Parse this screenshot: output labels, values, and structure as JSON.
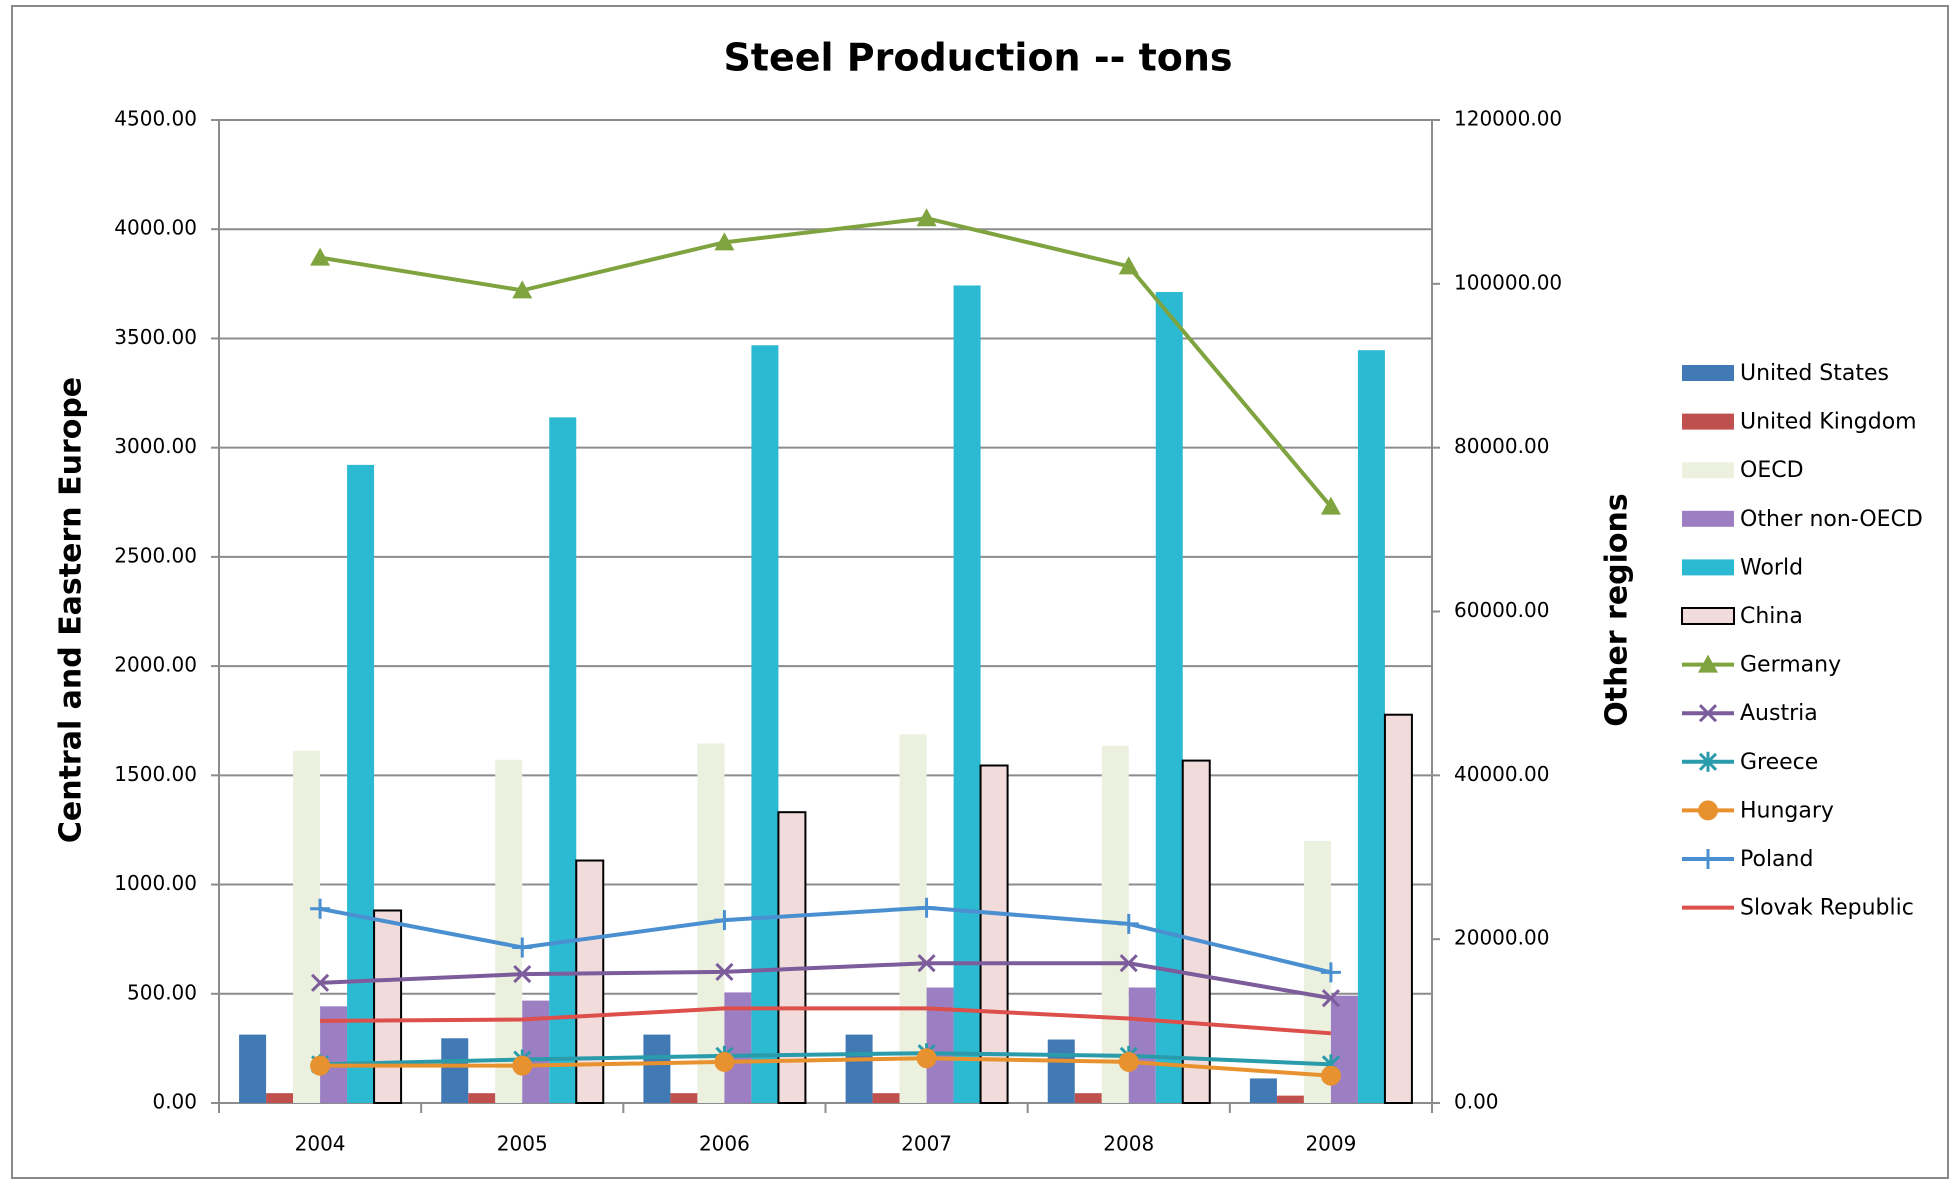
{
  "chart_data": {
    "type": "bar_line",
    "title": "Steel Production -- tons",
    "y_label": "Central and Eastern Europe",
    "y2_label": "Other regions",
    "categories": [
      "2004",
      "2005",
      "2006",
      "2007",
      "2008",
      "2009"
    ],
    "ylim": [
      0,
      4500
    ],
    "yticks": [
      {
        "value": 0,
        "label": "0.00"
      },
      {
        "value": 500,
        "label": "500.00"
      },
      {
        "value": 1000,
        "label": "1000.00"
      },
      {
        "value": 1500,
        "label": "1500.00"
      },
      {
        "value": 2000,
        "label": "2000.00"
      },
      {
        "value": 2500,
        "label": "2500.00"
      },
      {
        "value": 3000,
        "label": "3000.00"
      },
      {
        "value": 3500,
        "label": "3500.00"
      },
      {
        "value": 4000,
        "label": "4000.00"
      },
      {
        "value": 4500,
        "label": "4500.00"
      }
    ],
    "y2lim": [
      0,
      120000
    ],
    "y2ticks": [
      {
        "value": 0,
        "label": "0.00"
      },
      {
        "value": 20000,
        "label": "20000.00"
      },
      {
        "value": 40000,
        "label": "40000.00"
      },
      {
        "value": 60000,
        "label": "60000.00"
      },
      {
        "value": 80000,
        "label": "80000.00"
      },
      {
        "value": 100000,
        "label": "100000.00"
      },
      {
        "value": 120000,
        "label": "120000.00"
      }
    ],
    "grid": true,
    "legend": "right",
    "series": [
      {
        "name": "United States",
        "type": "bar",
        "axis": "y2",
        "color": "#4179b4",
        "values": [
          8350,
          7900,
          8350,
          8350,
          7750,
          3000
        ]
      },
      {
        "name": "United Kingdom",
        "type": "bar",
        "axis": "y2",
        "color": "#c0504d",
        "values": [
          1200,
          1200,
          1200,
          1200,
          1200,
          900
        ]
      },
      {
        "name": "OECD",
        "type": "bar",
        "axis": "y2",
        "color": "#ebf1de",
        "values": [
          43000,
          41900,
          43900,
          45000,
          43600,
          32000
        ]
      },
      {
        "name": "Other non-OECD",
        "type": "bar",
        "axis": "y2",
        "color": "#9b7fc2",
        "values": [
          11800,
          12500,
          13500,
          14100,
          14100,
          13100
        ]
      },
      {
        "name": "World",
        "type": "bar",
        "axis": "y2",
        "color": "#2cbad3",
        "values": [
          77900,
          83700,
          92500,
          99800,
          99000,
          91900
        ]
      },
      {
        "name": "China",
        "type": "bar",
        "axis": "y2",
        "color": "#f2dcdb",
        "stroke": "#000000",
        "values": [
          23500,
          29600,
          35500,
          41200,
          41800,
          47400
        ]
      },
      {
        "name": "Germany",
        "type": "line",
        "marker": "triangle",
        "color": "#7fa33e",
        "values": [
          3870,
          3720,
          3940,
          4050,
          3830,
          2730
        ]
      },
      {
        "name": "Austria",
        "type": "line",
        "marker": "x",
        "color": "#7c5c9a",
        "values": [
          550,
          590,
          600,
          640,
          640,
          480
        ]
      },
      {
        "name": "Greece",
        "type": "line",
        "marker": "asterisk",
        "color": "#2a9bab",
        "values": [
          177,
          199,
          216,
          228,
          216,
          177
        ]
      },
      {
        "name": "Hungary",
        "type": "line",
        "marker": "circle",
        "color": "#e8922f",
        "values": [
          171,
          171,
          188,
          205,
          188,
          125
        ]
      },
      {
        "name": "Poland",
        "type": "line",
        "marker": "plus",
        "color": "#4a90d0",
        "values": [
          889,
          712,
          837,
          894,
          820,
          598
        ]
      },
      {
        "name": "Slovak Republic",
        "type": "line",
        "marker": "none",
        "color": "#dc4f4b",
        "values": [
          376,
          382,
          433,
          433,
          387,
          319
        ]
      }
    ]
  }
}
